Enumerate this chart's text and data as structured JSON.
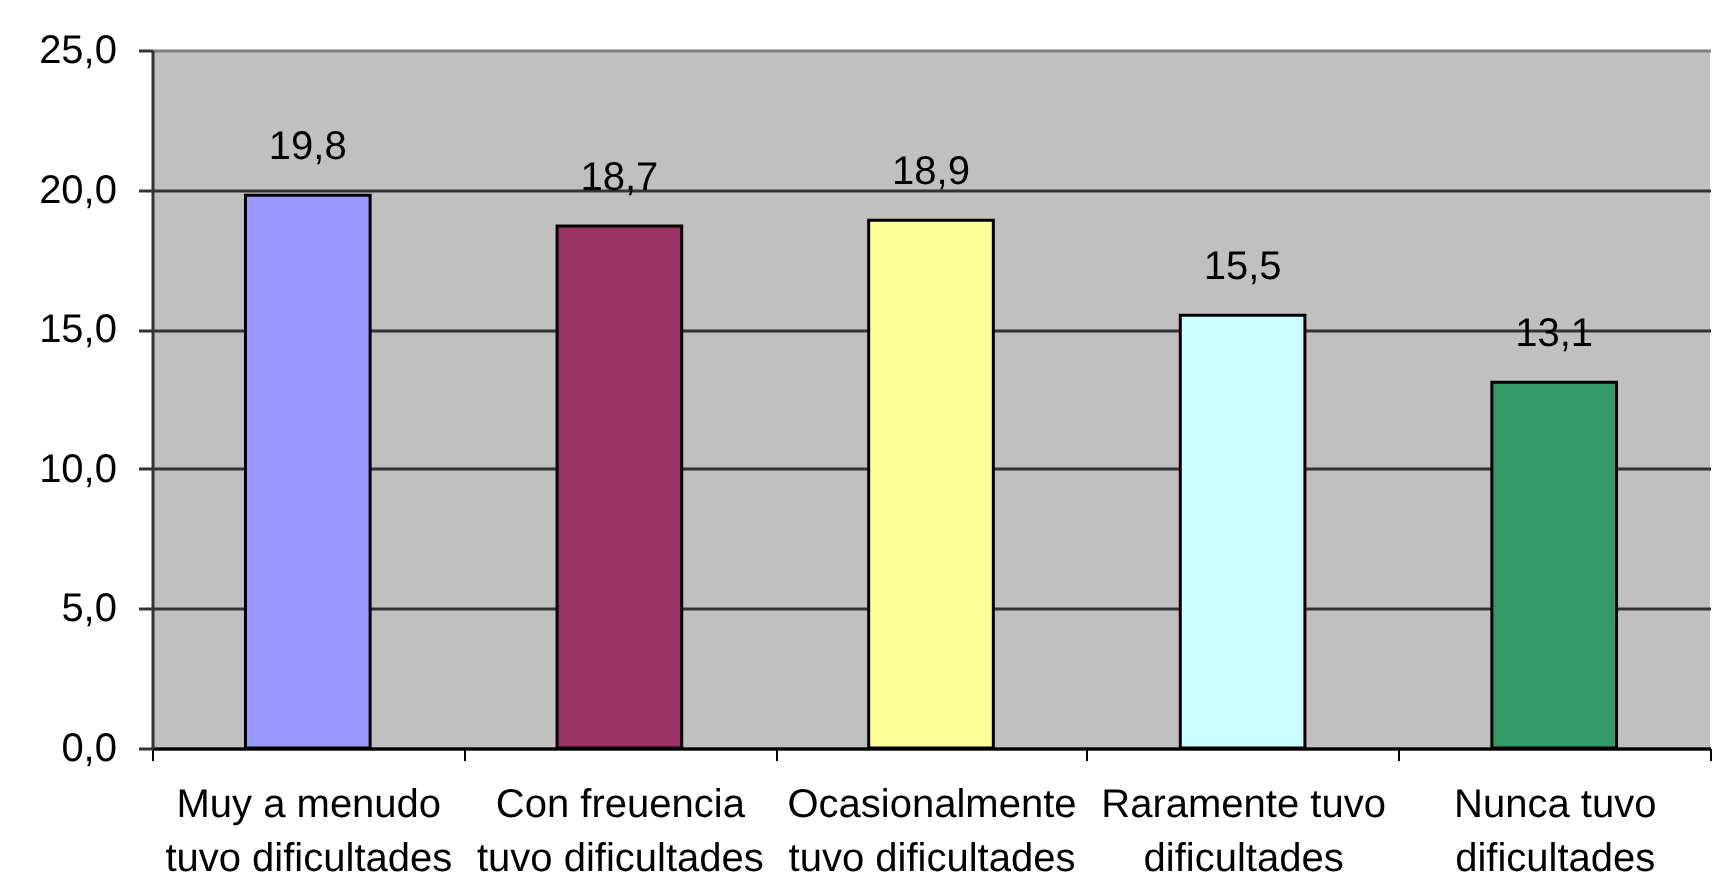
{
  "chart_data": {
    "type": "bar",
    "categories": [
      "Muy a menudo tuvo dificultades",
      "Con freuencia tuvo dificultades",
      "Ocasionalmente tuvo dificultades",
      "Raramente tuvo dificultades",
      "Nunca tuvo dificultades"
    ],
    "values": [
      19.8,
      18.7,
      18.9,
      15.5,
      13.1
    ],
    "value_labels": [
      "19,8",
      "18,7",
      "18,9",
      "15,5",
      "13,1"
    ],
    "colors": [
      "#9999ff",
      "#993366",
      "#ffff99",
      "#ccffff",
      "#339966"
    ],
    "ylim": [
      0,
      25
    ],
    "yticks": [
      {
        "value": 0,
        "label": "0,0"
      },
      {
        "value": 5,
        "label": "5,0"
      },
      {
        "value": 10,
        "label": "10,0"
      },
      {
        "value": 15,
        "label": "15,0"
      },
      {
        "value": 20,
        "label": "20,0"
      },
      {
        "value": 25,
        "label": "25,0"
      }
    ],
    "grid": "y"
  }
}
